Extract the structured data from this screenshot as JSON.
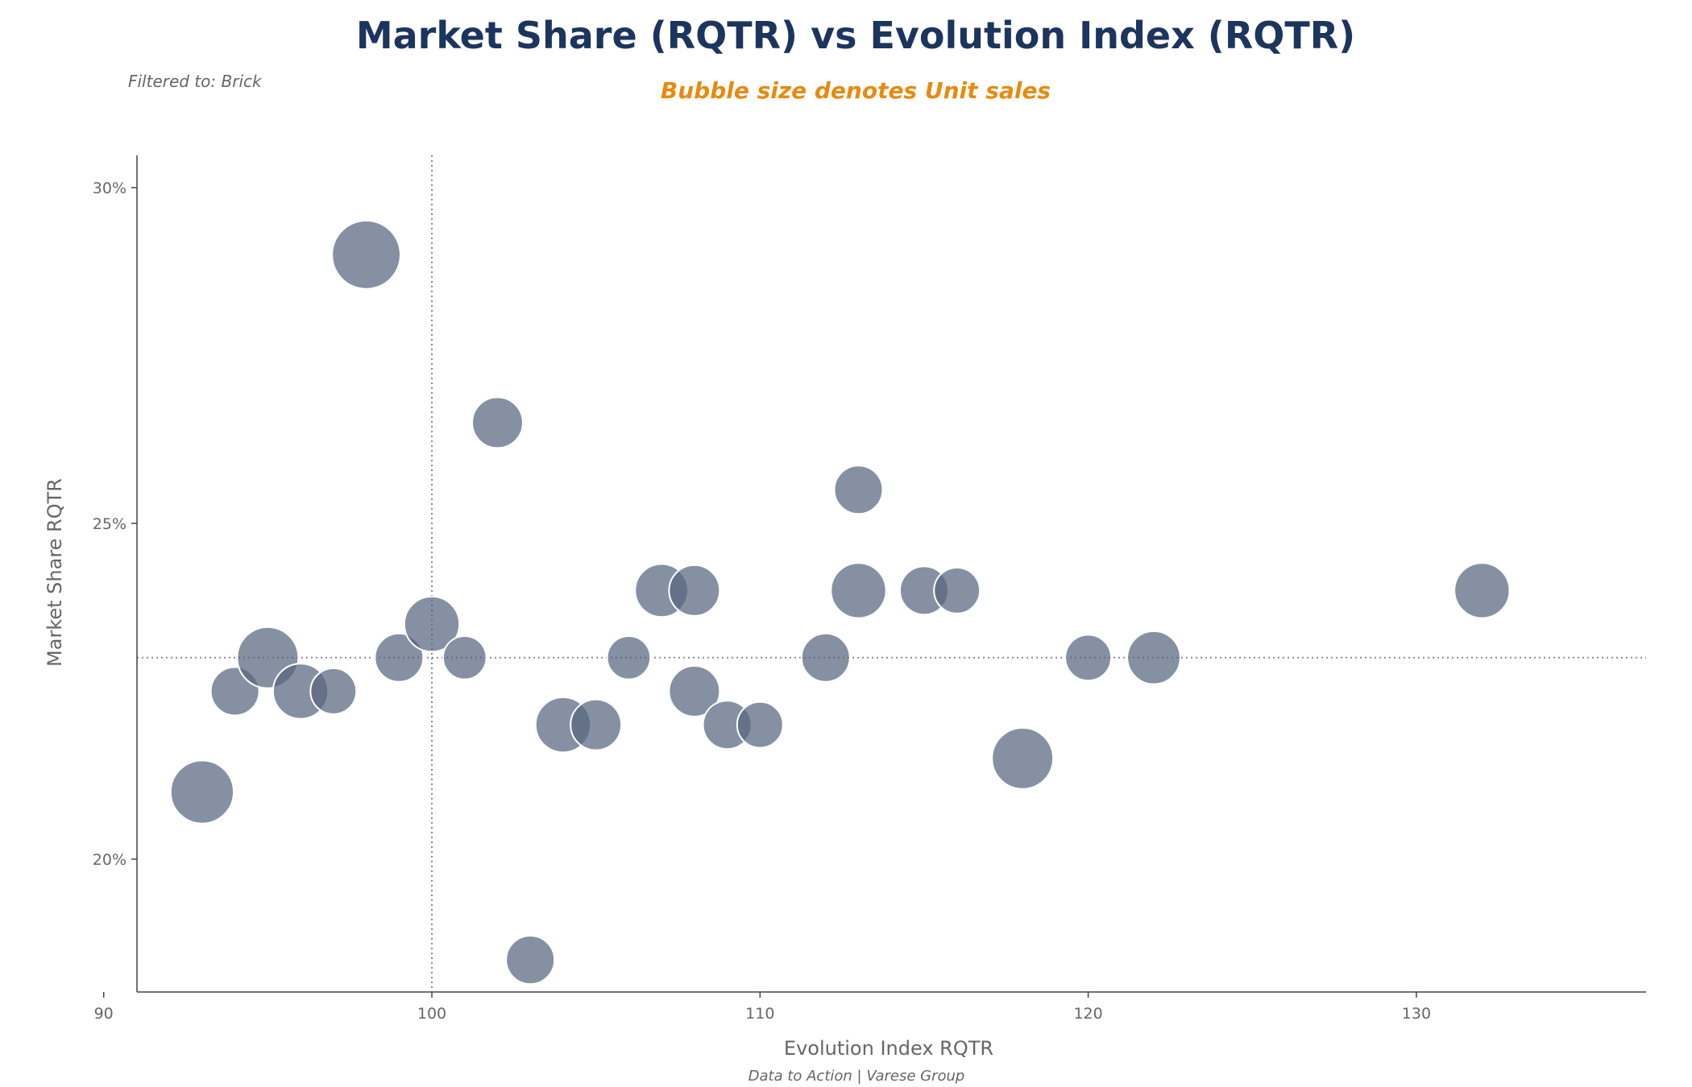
{
  "colors": {
    "title": "#1c355e",
    "subtitle": "#e88a10",
    "muted_text": "#666666",
    "axis": "#444444",
    "bubble_fill": "#56677f",
    "bubble_stroke": "#ffffff",
    "ref_line": "#8a8a8a"
  },
  "header": {
    "filter_label": "Filtered to:  Brick"
  },
  "footer": {
    "credit": "Data to Action  |  Varese Group"
  },
  "chart_data": {
    "type": "scatter",
    "title": "Market Share (RQTR) vs Evolution Index (RQTR)",
    "subtitle": "Bubble size denotes Unit sales",
    "xlabel": "Evolution Index RQTR",
    "ylabel": "Market Share RQTR",
    "xlim": [
      89,
      135
    ],
    "ylim": [
      18.0,
      30.5
    ],
    "x_ticks": [
      {
        "value": 90,
        "label": "90"
      },
      {
        "value": 100,
        "label": "100"
      },
      {
        "value": 110,
        "label": "110"
      },
      {
        "value": 120,
        "label": "120"
      },
      {
        "value": 130,
        "label": "130"
      }
    ],
    "y_ticks": [
      {
        "value": 20,
        "label": "20%"
      },
      {
        "value": 25,
        "label": "25%"
      },
      {
        "value": 30,
        "label": "30%"
      }
    ],
    "reference_lines": {
      "x": 100,
      "y": 23.0
    },
    "grid": false,
    "points": [
      {
        "x": 93,
        "y": 21.0,
        "size": 1.7
      },
      {
        "x": 94,
        "y": 22.5,
        "size": 1.0
      },
      {
        "x": 95,
        "y": 23.0,
        "size": 1.6
      },
      {
        "x": 96,
        "y": 22.5,
        "size": 1.3
      },
      {
        "x": 97,
        "y": 22.5,
        "size": 0.9
      },
      {
        "x": 98,
        "y": 29.0,
        "size": 2.0
      },
      {
        "x": 99,
        "y": 23.0,
        "size": 1.0
      },
      {
        "x": 100,
        "y": 23.5,
        "size": 1.3
      },
      {
        "x": 101,
        "y": 23.0,
        "size": 0.8
      },
      {
        "x": 102,
        "y": 26.5,
        "size": 1.1
      },
      {
        "x": 103,
        "y": 18.5,
        "size": 1.0
      },
      {
        "x": 104,
        "y": 22.0,
        "size": 1.3
      },
      {
        "x": 105,
        "y": 22.0,
        "size": 1.1
      },
      {
        "x": 106,
        "y": 23.0,
        "size": 0.8
      },
      {
        "x": 107,
        "y": 24.0,
        "size": 1.2
      },
      {
        "x": 108,
        "y": 24.0,
        "size": 1.1
      },
      {
        "x": 108,
        "y": 22.5,
        "size": 1.1
      },
      {
        "x": 109,
        "y": 22.0,
        "size": 1.0
      },
      {
        "x": 110,
        "y": 22.0,
        "size": 0.9
      },
      {
        "x": 112,
        "y": 23.0,
        "size": 1.0
      },
      {
        "x": 113,
        "y": 25.5,
        "size": 1.0
      },
      {
        "x": 113,
        "y": 24.0,
        "size": 1.3
      },
      {
        "x": 115,
        "y": 24.0,
        "size": 1.0
      },
      {
        "x": 116,
        "y": 24.0,
        "size": 0.9
      },
      {
        "x": 118,
        "y": 21.5,
        "size": 1.6
      },
      {
        "x": 120,
        "y": 23.0,
        "size": 0.9
      },
      {
        "x": 122,
        "y": 23.0,
        "size": 1.2
      },
      {
        "x": 132,
        "y": 24.0,
        "size": 1.3
      }
    ]
  }
}
